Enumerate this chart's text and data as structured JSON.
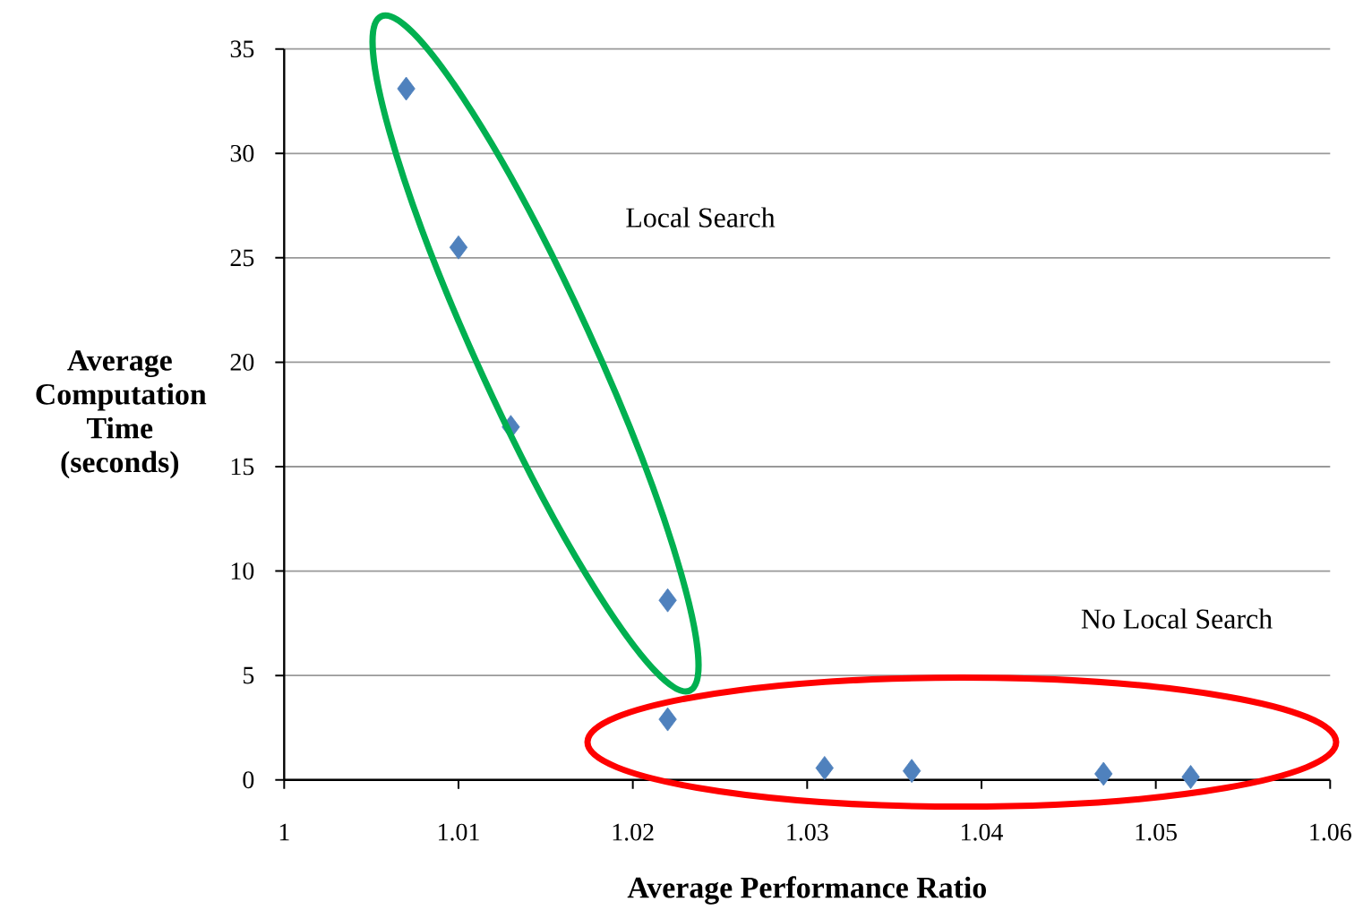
{
  "chart_data": {
    "type": "scatter",
    "xlabel": "Average Performance Ratio",
    "ylabel": "Average Computation Time (seconds)",
    "x": [
      1.007,
      1.01,
      1.013,
      1.022,
      1.022,
      1.031,
      1.036,
      1.047,
      1.052
    ],
    "values": [
      33.1,
      25.5,
      16.9,
      8.6,
      2.9,
      0.57,
      0.43,
      0.29,
      0.14
    ],
    "color": "#4f81bd",
    "marker": "diamond",
    "grid": "y",
    "xlim": [
      1,
      1.06
    ],
    "xticks": [
      1,
      1.01,
      1.02,
      1.03,
      1.04,
      1.05,
      1.06
    ],
    "ylim": [
      0,
      35
    ],
    "yticks": [
      0,
      5,
      10,
      15,
      20,
      25,
      30,
      35
    ],
    "annotations": [
      "Local Search",
      "No Local Search"
    ]
  }
}
